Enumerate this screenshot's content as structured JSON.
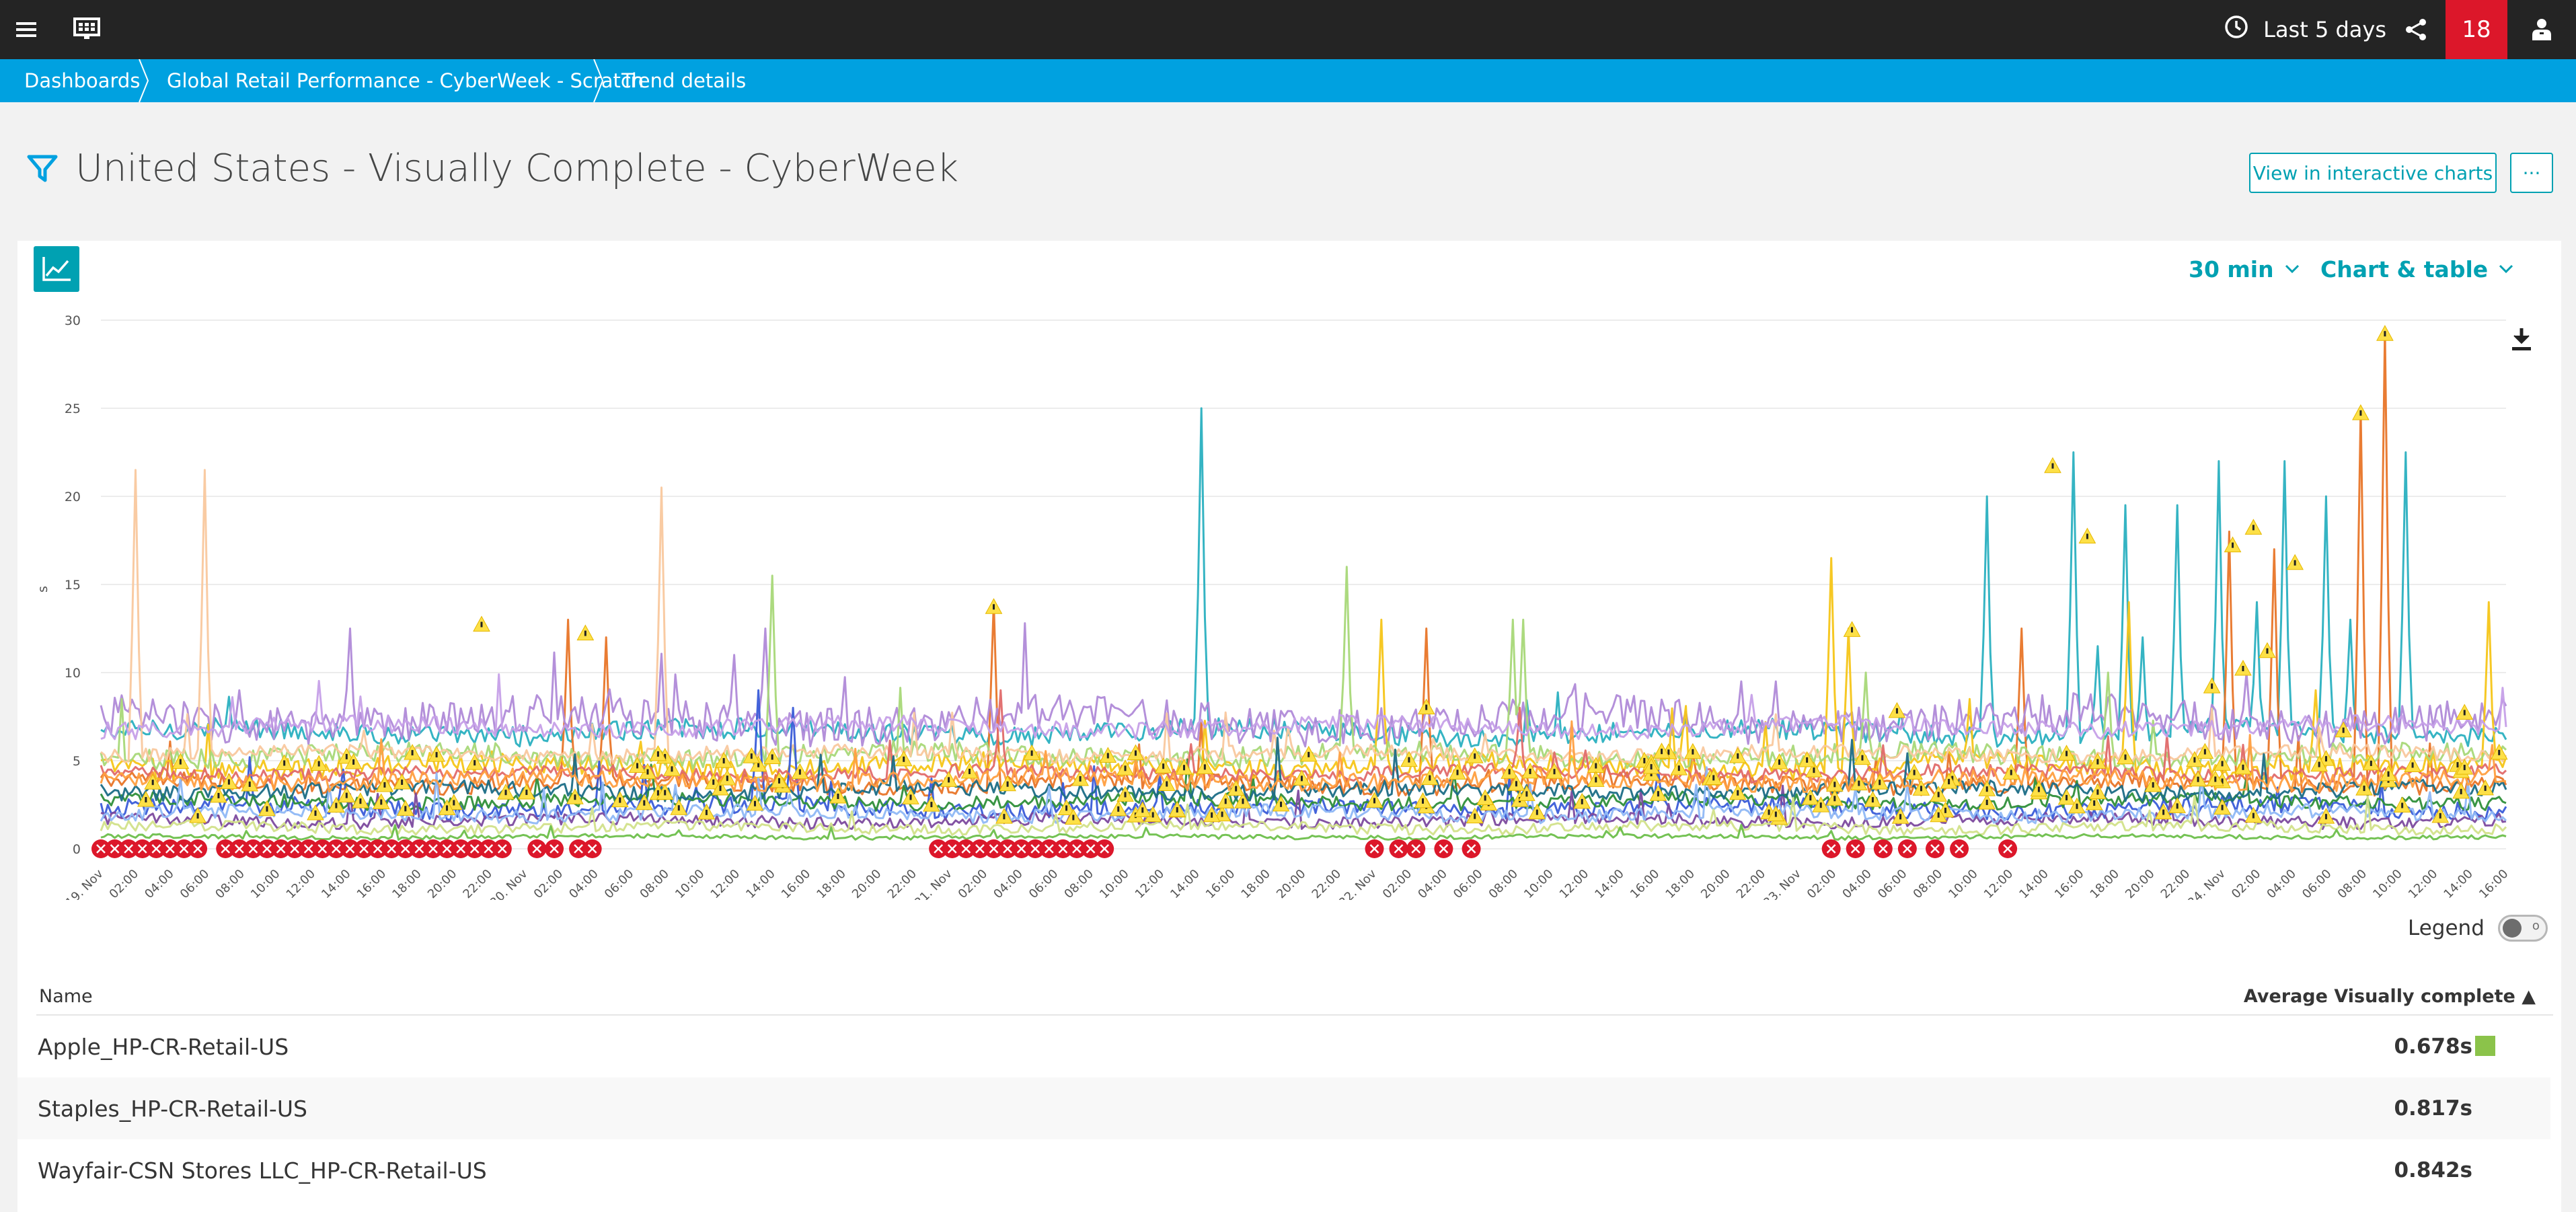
{
  "topbar": {
    "timeframe": "Last 5 days",
    "problem_count": "18"
  },
  "breadcrumb": [
    "Dashboards",
    "Global Retail Performance - CyberWeek - Scratch",
    "Trend details"
  ],
  "page": {
    "title": "United States - Visually Complete - CyberWeek",
    "view_button": "View in interactive charts",
    "more_button": "···"
  },
  "controls": {
    "resolution": "30 min",
    "visualization": "Chart & table"
  },
  "chart_data": {
    "type": "line",
    "ylabel": "s",
    "ylim": [
      0,
      30
    ],
    "yticks": [
      "0",
      "5",
      "10",
      "15",
      "20",
      "25",
      "30"
    ],
    "x_labels": [
      "19. Nov",
      "02:00",
      "04:00",
      "06:00",
      "08:00",
      "10:00",
      "12:00",
      "14:00",
      "16:00",
      "18:00",
      "20:00",
      "22:00",
      "20. Nov",
      "02:00",
      "04:00",
      "06:00",
      "08:00",
      "10:00",
      "12:00",
      "14:00",
      "16:00",
      "18:00",
      "20:00",
      "22:00",
      "21. Nov",
      "02:00",
      "04:00",
      "06:00",
      "08:00",
      "10:00",
      "12:00",
      "14:00",
      "16:00",
      "18:00",
      "20:00",
      "22:00",
      "22. Nov",
      "02:00",
      "04:00",
      "06:00",
      "08:00",
      "10:00",
      "12:00",
      "14:00",
      "16:00",
      "18:00",
      "20:00",
      "22:00",
      "23. Nov",
      "02:00",
      "04:00",
      "06:00",
      "08:00",
      "10:00",
      "12:00",
      "14:00",
      "16:00",
      "18:00",
      "20:00",
      "22:00",
      "24. Nov",
      "02:00",
      "04:00",
      "06:00",
      "08:00",
      "10:00",
      "12:00",
      "14:00",
      "16:00"
    ],
    "series_colors": [
      "#2ab0c0",
      "#e87528",
      "#b08ad8",
      "#f5c518",
      "#a8d878",
      "#f9c89e",
      "#3a5cd8",
      "#2f8f3a",
      "#7c4a9e",
      "#e06a6a",
      "#1b6d86",
      "#c6a0e8",
      "#8fb8f5",
      "#d2e28a",
      "#6dbf4b",
      "#ff9f40"
    ],
    "series": [
      {
        "color": "#2ab0c0",
        "base": 6.6,
        "noise": 0.6,
        "spikes": [
          [
            318,
            25
          ],
          [
            570,
            22.5
          ],
          [
            545,
            20
          ],
          [
            585,
            19.5
          ],
          [
            600,
            19.5
          ],
          [
            612,
            22
          ],
          [
            631,
            22
          ],
          [
            643,
            20
          ],
          [
            666,
            22.5
          ],
          [
            577,
            11.5
          ],
          [
            590,
            12
          ],
          [
            623,
            14
          ],
          [
            650,
            13
          ],
          [
            520,
            7.8
          ]
        ]
      },
      {
        "color": "#e87528",
        "base": 3.7,
        "noise": 0.5,
        "spikes": [
          [
            135,
            13
          ],
          [
            146,
            12
          ],
          [
            258,
            14
          ],
          [
            383,
            12.5
          ],
          [
            660,
            29.5
          ],
          [
            653,
            25
          ],
          [
            615,
            18
          ],
          [
            628,
            17
          ],
          [
            555,
            12.5
          ],
          [
            460,
            5.5
          ]
        ]
      },
      {
        "color": "#b08ad8",
        "base": 7.3,
        "noise": 1.1,
        "spikes": [
          [
            72,
            12.5
          ],
          [
            183,
            11
          ],
          [
            192,
            12.5
          ],
          [
            474,
            9.5
          ],
          [
            484,
            9.5
          ],
          [
            620,
            10
          ],
          [
            650,
            8
          ],
          [
            40,
            9
          ]
        ]
      },
      {
        "color": "#f5c518",
        "base": 4.7,
        "noise": 0.6,
        "spikes": [
          [
            500,
            16.5
          ],
          [
            586,
            14
          ],
          [
            690,
            14
          ],
          [
            505,
            12.5
          ],
          [
            370,
            13
          ],
          [
            640,
            9
          ],
          [
            540,
            8.5
          ]
        ]
      },
      {
        "color": "#a8d878",
        "base": 5.3,
        "noise": 0.6,
        "spikes": [
          [
            194,
            15.5
          ],
          [
            360,
            16
          ],
          [
            408,
            13
          ],
          [
            411,
            13
          ],
          [
            510,
            10
          ],
          [
            580,
            10
          ]
        ]
      },
      {
        "color": "#f9c89e",
        "base": 5.4,
        "noise": 0.4,
        "spikes": [
          [
            10,
            21.5
          ],
          [
            30,
            21.5
          ],
          [
            162,
            20.5
          ],
          [
            400,
            6.5
          ]
        ]
      },
      {
        "color": "#3a5cd8",
        "base": 2.3,
        "noise": 0.5,
        "spikes": [
          [
            190,
            9
          ],
          [
            200,
            8
          ],
          [
            70,
            4.5
          ],
          [
            450,
            4.5
          ]
        ]
      },
      {
        "color": "#2f8f3a",
        "base": 2.7,
        "noise": 0.4,
        "spikes": []
      },
      {
        "color": "#7c4a9e",
        "base": 1.6,
        "noise": 0.35,
        "spikes": []
      },
      {
        "color": "#e06a6a",
        "base": 4.3,
        "noise": 0.4,
        "spikes": [
          [
            260,
            9
          ],
          [
            410,
            8
          ]
        ]
      },
      {
        "color": "#1b6d86",
        "base": 3.3,
        "noise": 0.45,
        "spikes": []
      },
      {
        "color": "#c6a0e8",
        "base": 6.9,
        "noise": 0.5,
        "spikes": []
      },
      {
        "color": "#8fb8f5",
        "base": 2.0,
        "noise": 0.4,
        "spikes": []
      },
      {
        "color": "#d2e28a",
        "base": 1.2,
        "noise": 0.3,
        "spikes": []
      },
      {
        "color": "#6dbf4b",
        "base": 0.678,
        "noise": 0.12,
        "spikes": []
      },
      {
        "color": "#ff9f40",
        "base": 3.9,
        "noise": 0.5,
        "spikes": []
      }
    ],
    "error_markers_at": [
      0,
      4,
      8,
      12,
      16,
      20,
      24,
      28,
      36,
      40,
      44,
      48,
      52,
      56,
      60,
      64,
      68,
      72,
      76,
      80,
      84,
      88,
      92,
      96,
      100,
      104,
      108,
      112,
      116,
      126,
      131,
      138,
      142,
      242,
      246,
      250,
      254,
      258,
      262,
      266,
      270,
      274,
      278,
      282,
      286,
      290,
      368,
      375,
      380,
      388,
      396,
      500,
      507,
      515,
      522,
      530,
      537,
      551
    ],
    "warning_markers": [
      [
        110,
        12.5
      ],
      [
        140,
        12
      ],
      [
        258,
        13.5
      ],
      [
        383,
        7.8
      ],
      [
        564,
        21.5
      ],
      [
        574,
        17.5
      ],
      [
        660,
        29
      ],
      [
        653,
        24.5
      ],
      [
        622,
        18
      ],
      [
        634,
        16
      ],
      [
        616,
        17
      ],
      [
        648,
        6.5
      ],
      [
        519,
        7.6
      ],
      [
        506,
        12.2
      ],
      [
        683,
        7.5
      ],
      [
        619,
        10
      ],
      [
        626,
        11
      ],
      [
        610,
        9
      ]
    ]
  },
  "legend": {
    "label": "Legend",
    "toggle_off_glyph": "o"
  },
  "table": {
    "col_name": "Name",
    "col_value": "Average Visually complete ▲",
    "rows": [
      {
        "name": "Apple_HP-CR-Retail-US",
        "value": "0.678s",
        "swatch": "#8bc34a"
      },
      {
        "name": "Staples_HP-CR-Retail-US",
        "value": "0.817s",
        "swatch": ""
      },
      {
        "name": "Wayfair-CSN Stores LLC_HP-CR-Retail-US",
        "value": "0.842s",
        "swatch": ""
      }
    ]
  }
}
